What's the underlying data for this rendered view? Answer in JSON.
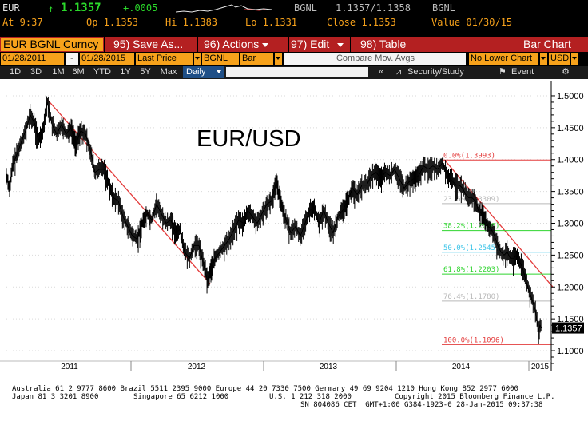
{
  "quote": {
    "ticker": "EUR",
    "arrow": "↑",
    "last": "1.1357",
    "change": "+.0005",
    "source": "BGNL",
    "bid_ask": "1.1357/1.1358",
    "source2": "BGNL",
    "time": "At 9:37",
    "open": "Op 1.1353",
    "high": "Hi 1.1383",
    "low": "Lo 1.1331",
    "close": "Close 1.1353",
    "value": "Value 01/30/15"
  },
  "toolbar": {
    "security": "EUR BGNL Curncy",
    "save": "95) Save As...",
    "actions": "96) Actions",
    "edit": "97) Edit",
    "table": "98) Table",
    "chart_type": "Bar Chart"
  },
  "settings": {
    "start_date": "01/28/2011",
    "dash": "-",
    "end_date": "01/28/2015",
    "field": "Last Price",
    "source": "BGNL",
    "style": "Bar",
    "compare": "Compare Mov. Avgs",
    "lower": "No Lower Chart",
    "currency": "USD"
  },
  "periods": [
    "1D",
    "3D",
    "1M",
    "6M",
    "YTD",
    "1Y",
    "5Y",
    "Max"
  ],
  "frequency": "Daily",
  "nav": {
    "collapse": "«",
    "security_study": "Security/Study",
    "event": "Event"
  },
  "chart_data": {
    "type": "bar",
    "title": "EUR/USD",
    "x_ticks": [
      "2011",
      "2012",
      "2013",
      "2014",
      "2015"
    ],
    "y_ticks": [
      "1.5000",
      "1.4500",
      "1.4000",
      "1.3500",
      "1.3000",
      "1.2500",
      "1.2000",
      "1.1500",
      "1.1000"
    ],
    "ylim": [
      1.085,
      1.515
    ],
    "last_price_label": "1.1357",
    "series_points": [
      [
        0,
        1.375
      ],
      [
        4,
        1.355
      ],
      [
        8,
        1.392
      ],
      [
        12,
        1.405
      ],
      [
        18,
        1.425
      ],
      [
        24,
        1.445
      ],
      [
        30,
        1.47
      ],
      [
        36,
        1.455
      ],
      [
        40,
        1.43
      ],
      [
        46,
        1.445
      ],
      [
        52,
        1.49
      ],
      [
        58,
        1.455
      ],
      [
        64,
        1.44
      ],
      [
        70,
        1.455
      ],
      [
        76,
        1.44
      ],
      [
        82,
        1.45
      ],
      [
        88,
        1.425
      ],
      [
        94,
        1.445
      ],
      [
        100,
        1.44
      ],
      [
        106,
        1.415
      ],
      [
        112,
        1.38
      ],
      [
        118,
        1.385
      ],
      [
        124,
        1.385
      ],
      [
        130,
        1.36
      ],
      [
        136,
        1.34
      ],
      [
        142,
        1.335
      ],
      [
        148,
        1.31
      ],
      [
        154,
        1.295
      ],
      [
        160,
        1.28
      ],
      [
        166,
        1.275
      ],
      [
        172,
        1.3
      ],
      [
        178,
        1.315
      ],
      [
        184,
        1.305
      ],
      [
        190,
        1.33
      ],
      [
        196,
        1.315
      ],
      [
        202,
        1.3
      ],
      [
        208,
        1.305
      ],
      [
        214,
        1.285
      ],
      [
        220,
        1.29
      ],
      [
        226,
        1.255
      ],
      [
        232,
        1.245
      ],
      [
        238,
        1.265
      ],
      [
        244,
        1.265
      ],
      [
        250,
        1.235
      ],
      [
        255,
        1.21
      ],
      [
        258,
        1.225
      ],
      [
        264,
        1.245
      ],
      [
        270,
        1.255
      ],
      [
        276,
        1.265
      ],
      [
        282,
        1.275
      ],
      [
        288,
        1.29
      ],
      [
        294,
        1.305
      ],
      [
        300,
        1.3
      ],
      [
        306,
        1.32
      ],
      [
        312,
        1.31
      ],
      [
        318,
        1.3
      ],
      [
        324,
        1.315
      ],
      [
        330,
        1.33
      ],
      [
        336,
        1.335
      ],
      [
        342,
        1.365
      ],
      [
        348,
        1.33
      ],
      [
        354,
        1.305
      ],
      [
        360,
        1.285
      ],
      [
        366,
        1.295
      ],
      [
        372,
        1.28
      ],
      [
        378,
        1.3
      ],
      [
        384,
        1.32
      ],
      [
        390,
        1.325
      ],
      [
        396,
        1.3
      ],
      [
        402,
        1.32
      ],
      [
        408,
        1.3
      ],
      [
        414,
        1.285
      ],
      [
        420,
        1.31
      ],
      [
        426,
        1.32
      ],
      [
        432,
        1.335
      ],
      [
        438,
        1.355
      ],
      [
        444,
        1.345
      ],
      [
        450,
        1.36
      ],
      [
        456,
        1.36
      ],
      [
        462,
        1.375
      ],
      [
        468,
        1.38
      ],
      [
        474,
        1.37
      ],
      [
        480,
        1.38
      ],
      [
        486,
        1.375
      ],
      [
        492,
        1.385
      ],
      [
        498,
        1.37
      ],
      [
        504,
        1.355
      ],
      [
        510,
        1.365
      ],
      [
        516,
        1.37
      ],
      [
        522,
        1.375
      ],
      [
        528,
        1.39
      ],
      [
        534,
        1.385
      ],
      [
        540,
        1.39
      ],
      [
        546,
        1.385
      ],
      [
        552,
        1.395
      ],
      [
        555,
        1.385
      ],
      [
        558,
        1.375
      ],
      [
        562,
        1.37
      ],
      [
        566,
        1.365
      ],
      [
        570,
        1.36
      ],
      [
        574,
        1.36
      ],
      [
        578,
        1.355
      ],
      [
        582,
        1.345
      ],
      [
        586,
        1.34
      ],
      [
        590,
        1.34
      ],
      [
        594,
        1.335
      ],
      [
        598,
        1.32
      ],
      [
        602,
        1.315
      ],
      [
        606,
        1.305
      ],
      [
        610,
        1.295
      ],
      [
        614,
        1.29
      ],
      [
        618,
        1.28
      ],
      [
        622,
        1.265
      ],
      [
        626,
        1.255
      ],
      [
        630,
        1.25
      ],
      [
        634,
        1.255
      ],
      [
        638,
        1.245
      ],
      [
        642,
        1.245
      ],
      [
        646,
        1.25
      ],
      [
        650,
        1.24
      ],
      [
        654,
        1.23
      ],
      [
        658,
        1.21
      ],
      [
        662,
        1.195
      ],
      [
        666,
        1.18
      ],
      [
        670,
        1.165
      ],
      [
        674,
        1.13
      ],
      [
        676,
        1.14
      ],
      [
        678,
        1.1357
      ]
    ],
    "trendlines": [
      {
        "from": [
          52,
          1.494
        ],
        "to": [
          258,
          1.205
        ]
      },
      {
        "from": [
          555,
          1.3993
        ],
        "to": [
          692,
          1.2
        ]
      }
    ],
    "fibonacci": [
      {
        "label": "0.0%(1.3993)",
        "value": 1.3993,
        "color": "#e33b3b"
      },
      {
        "label": "23.6%(1.3309)",
        "value": 1.3309,
        "color": "#b9b9b9"
      },
      {
        "label": "38.2%(1.2886)",
        "value": 1.2886,
        "color": "#2fd42f"
      },
      {
        "label": "50.0%(1.2545)",
        "value": 1.2545,
        "color": "#3cc4e8"
      },
      {
        "label": "61.8%(1.2203)",
        "value": 1.2203,
        "color": "#2fd42f"
      },
      {
        "label": "76.4%(1.1780)",
        "value": 1.178,
        "color": "#b9b9b9"
      },
      {
        "label": "100.0%(1.1096)",
        "value": 1.1096,
        "color": "#e33b3b"
      }
    ]
  },
  "footer": {
    "line1": "Australia 61 2 9777 8600 Brazil 5511 2395 9000 Europe 44 20 7330 7500 Germany 49 69 9204 1210 Hong Kong 852 2977 6000",
    "line2a": "Japan 81 3 3201 8900",
    "line2b": "Singapore 65 6212 1000",
    "line2c": "U.S. 1 212 318 2000",
    "line2d": "Copyright 2015 Bloomberg Finance L.P.",
    "line3": "SN 804086 CET  GMT+1:00 G384-1923-0 28-Jan-2015 09:37:38"
  },
  "colors": {
    "accent": "#f7a21b",
    "toolbar": "#b42021",
    "price_line": "#000000",
    "trendline": "#e33b3b",
    "selected": "#1f4f87"
  }
}
